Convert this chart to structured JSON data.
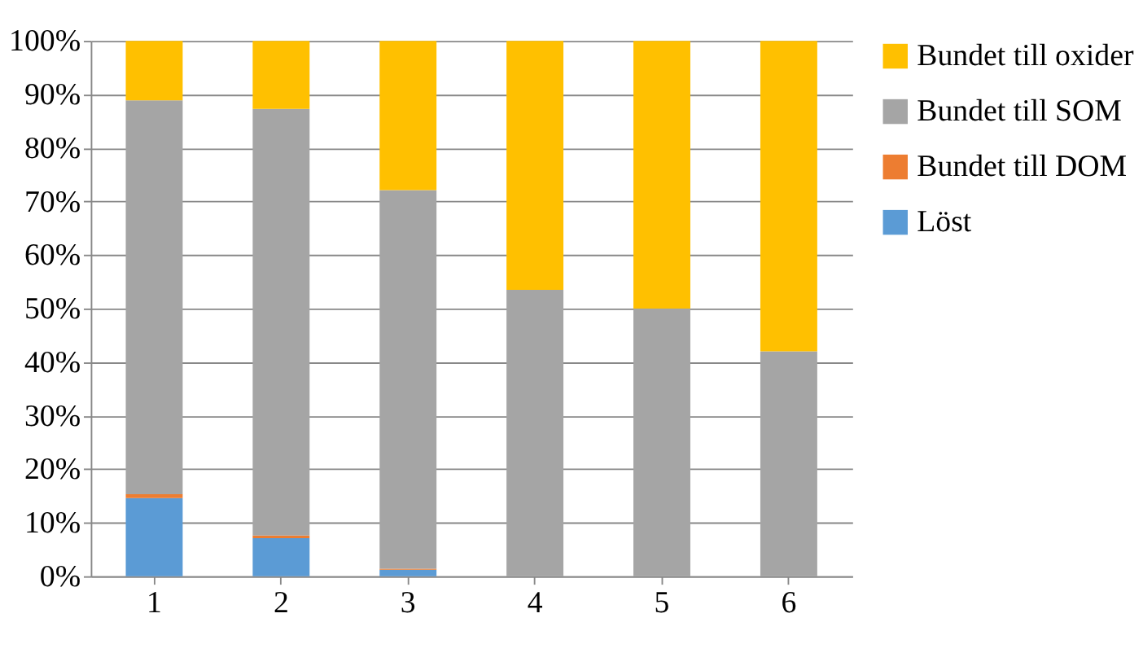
{
  "chart_data": {
    "type": "bar",
    "stacked": true,
    "categories": [
      "1",
      "2",
      "3",
      "4",
      "5",
      "6"
    ],
    "series": [
      {
        "name": "Löst",
        "color": "#5b9bd5",
        "values": [
          14.6,
          7.1,
          1.2,
          0,
          0,
          0
        ]
      },
      {
        "name": "Bundet till DOM",
        "color": "#ed7d31",
        "values": [
          0.7,
          0.5,
          0.2,
          0,
          0,
          0
        ]
      },
      {
        "name": "Bundet till SOM",
        "color": "#a5a5a5",
        "values": [
          73.6,
          79.7,
          70.7,
          53.5,
          50,
          42
        ]
      },
      {
        "name": "Bundet till oxider",
        "color": "#ffc000",
        "values": [
          11.1,
          12.7,
          27.9,
          46.5,
          50,
          58
        ]
      }
    ],
    "ylim": [
      0,
      100
    ],
    "yticks": [
      {
        "value": 0,
        "label": "0%"
      },
      {
        "value": 10,
        "label": "10%"
      },
      {
        "value": 20,
        "label": "20%"
      },
      {
        "value": 30,
        "label": "30%"
      },
      {
        "value": 40,
        "label": "40%"
      },
      {
        "value": 50,
        "label": "50%"
      },
      {
        "value": 60,
        "label": "60%"
      },
      {
        "value": 70,
        "label": "70%"
      },
      {
        "value": 80,
        "label": "80%"
      },
      {
        "value": 90,
        "label": "90%"
      },
      {
        "value": 100,
        "label": "100%"
      }
    ],
    "grid": "y",
    "legend": "right"
  }
}
